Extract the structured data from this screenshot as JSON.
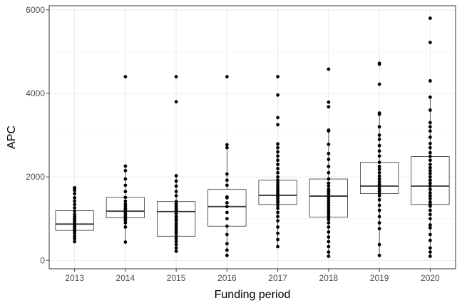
{
  "chart_data": {
    "type": "boxplot",
    "title": "",
    "xlabel": "Funding period",
    "ylabel": "APC",
    "ylim": [
      -200,
      6100
    ],
    "y_ticks": [
      0,
      2000,
      4000,
      6000
    ],
    "y_tick_labels": [
      "0",
      "2000",
      "4000",
      "6000"
    ],
    "grid": true,
    "categories": [
      "2013",
      "2014",
      "2015",
      "2016",
      "2017",
      "2018",
      "2019",
      "2020"
    ],
    "boxes": [
      {
        "category": "2013",
        "lower_whisker": 450,
        "q1": 720,
        "median": 870,
        "q3": 1190,
        "upper_whisker": 1740
      },
      {
        "category": "2014",
        "lower_whisker": 440,
        "q1": 1020,
        "median": 1180,
        "q3": 1510,
        "upper_whisker": 2260
      },
      {
        "category": "2015",
        "lower_whisker": 220,
        "q1": 580,
        "median": 1170,
        "q3": 1410,
        "upper_whisker": 2030
      },
      {
        "category": "2016",
        "lower_whisker": 120,
        "q1": 820,
        "median": 1290,
        "q3": 1700,
        "upper_whisker": 2770
      },
      {
        "category": "2017",
        "lower_whisker": 330,
        "q1": 1340,
        "median": 1560,
        "q3": 1920,
        "upper_whisker": 2790
      },
      {
        "category": "2018",
        "lower_whisker": 100,
        "q1": 1040,
        "median": 1540,
        "q3": 1950,
        "upper_whisker": 3120
      },
      {
        "category": "2019",
        "lower_whisker": 120,
        "q1": 1600,
        "median": 1780,
        "q3": 2350,
        "upper_whisker": 3530
      },
      {
        "category": "2020",
        "lower_whisker": 100,
        "q1": 1340,
        "median": 1780,
        "q3": 2490,
        "upper_whisker": 3910
      }
    ],
    "points": [
      {
        "category": "2013",
        "values": [
          450,
          520,
          580,
          650,
          700,
          740,
          780,
          820,
          860,
          900,
          950,
          1000,
          1050,
          1100,
          1180,
          1260,
          1340,
          1420,
          1500,
          1600,
          1680,
          1720,
          1740
        ]
      },
      {
        "category": "2014",
        "values": [
          440,
          800,
          900,
          960,
          1010,
          1060,
          1100,
          1150,
          1180,
          1220,
          1250,
          1300,
          1350,
          1420,
          1510,
          1650,
          1800,
          1950,
          2150,
          2260,
          4400
        ]
      },
      {
        "category": "2015",
        "values": [
          220,
          300,
          380,
          450,
          520,
          580,
          650,
          700,
          760,
          820,
          880,
          950,
          1000,
          1050,
          1120,
          1170,
          1200,
          1250,
          1300,
          1350,
          1410,
          1550,
          1650,
          1780,
          1900,
          2030,
          3800,
          4400
        ]
      },
      {
        "category": "2016",
        "values": [
          120,
          250,
          400,
          620,
          820,
          1000,
          1150,
          1290,
          1380,
          1500,
          1520,
          1800,
          1920,
          2070,
          2700,
          2770,
          4400
        ]
      },
      {
        "category": "2017",
        "values": [
          330,
          500,
          650,
          800,
          950,
          1050,
          1150,
          1250,
          1320,
          1380,
          1420,
          1480,
          1520,
          1560,
          1600,
          1650,
          1700,
          1750,
          1800,
          1860,
          1920,
          2000,
          2100,
          2200,
          2300,
          2400,
          2500,
          2600,
          2700,
          2790,
          3250,
          3420,
          3960,
          4400
        ]
      },
      {
        "category": "2018",
        "values": [
          100,
          200,
          330,
          450,
          560,
          680,
          800,
          900,
          980,
          1040,
          1100,
          1150,
          1200,
          1260,
          1320,
          1380,
          1440,
          1500,
          1540,
          1600,
          1650,
          1700,
          1780,
          1850,
          1950,
          2100,
          2250,
          2420,
          2560,
          2780,
          3100,
          3120,
          3680,
          3790,
          4580
        ]
      },
      {
        "category": "2019",
        "values": [
          120,
          380,
          760,
          900,
          1050,
          1200,
          1320,
          1450,
          1550,
          1600,
          1650,
          1700,
          1760,
          1780,
          1820,
          1880,
          1950,
          2020,
          2100,
          2180,
          2250,
          2350,
          2500,
          2620,
          2750,
          2900,
          3000,
          3200,
          3500,
          3530,
          4220,
          4700,
          4720
        ]
      },
      {
        "category": "2020",
        "values": [
          100,
          200,
          300,
          480,
          620,
          780,
          850,
          1000,
          1100,
          1200,
          1300,
          1340,
          1400,
          1480,
          1550,
          1620,
          1700,
          1780,
          1850,
          1920,
          2000,
          2080,
          2150,
          2220,
          2300,
          2400,
          2490,
          2580,
          2700,
          2800,
          2950,
          3100,
          3200,
          3300,
          3600,
          3910,
          4300,
          5220,
          5800
        ]
      }
    ]
  }
}
